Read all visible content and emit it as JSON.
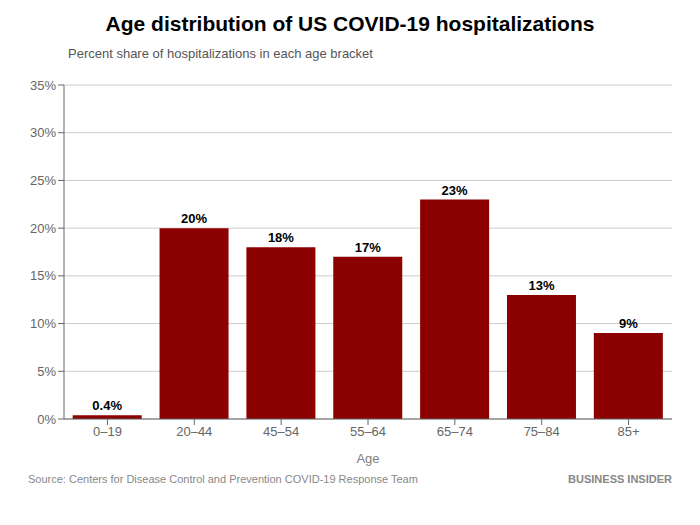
{
  "chart_data": {
    "type": "bar",
    "title": "Age distribution of US COVID-19 hospitalizations",
    "subtitle": "Percent share of hospitalizations in each age bracket",
    "xlabel": "Age",
    "categories": [
      "0–19",
      "20–44",
      "45–54",
      "55–64",
      "65–74",
      "75–84",
      "85+"
    ],
    "values": [
      0.4,
      20,
      18,
      17,
      23,
      13,
      9
    ],
    "value_labels": [
      "0.4%",
      "20%",
      "18%",
      "17%",
      "23%",
      "13%",
      "9%"
    ],
    "color": "#8B0000",
    "ylim": [
      0,
      35
    ],
    "yticks": [
      {
        "value": 0,
        "label": "0%"
      },
      {
        "value": 5,
        "label": "5%"
      },
      {
        "value": 10,
        "label": "10%"
      },
      {
        "value": 15,
        "label": "15%"
      },
      {
        "value": 20,
        "label": "20%"
      },
      {
        "value": 25,
        "label": "25%"
      },
      {
        "value": 30,
        "label": "30%"
      },
      {
        "value": 35,
        "label": "35%"
      }
    ],
    "grid": true,
    "data_labels": true,
    "annotations": [
      "Source: Centers for Disease Control and Prevention COVID-19 Response Team",
      "BUSINESS INSIDER"
    ]
  }
}
